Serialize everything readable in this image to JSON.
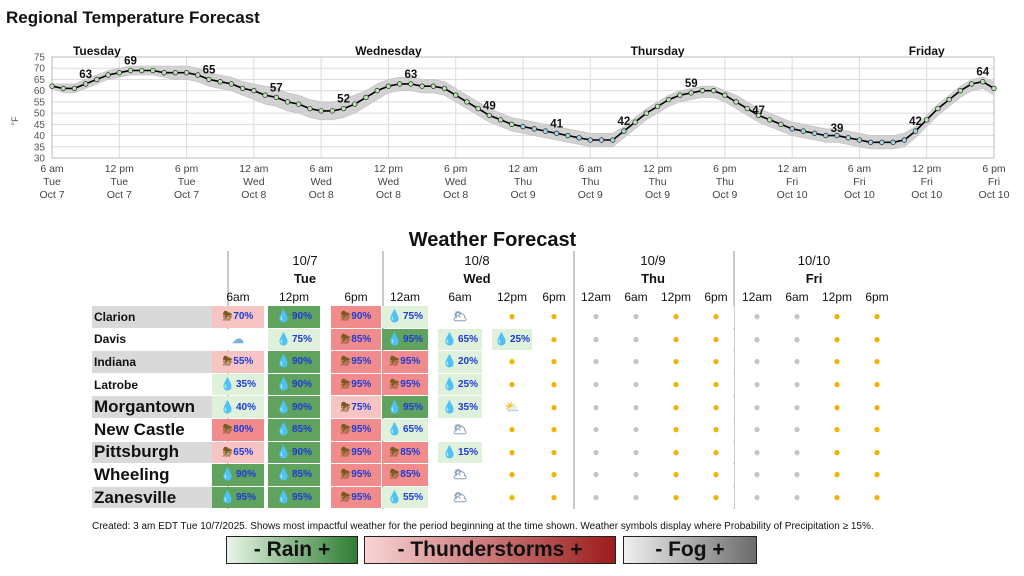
{
  "chart_data": {
    "type": "line",
    "title": "Regional Temperature Forecast",
    "ylabel": "°F",
    "ylim": [
      30,
      75
    ],
    "y_ticks": [
      30,
      35,
      40,
      45,
      50,
      55,
      60,
      65,
      70,
      75
    ],
    "grid": true,
    "day_labels": [
      {
        "label": "Tuesday",
        "h": 4
      },
      {
        "label": "Wednesday",
        "h": 30
      },
      {
        "label": "Thursday",
        "h": 54
      },
      {
        "label": "Friday",
        "h": 78
      }
    ],
    "x_ticks": [
      {
        "h": 0,
        "l1": "6 am",
        "l2": "Tue",
        "l3": "Oct 7"
      },
      {
        "h": 6,
        "l1": "12 pm",
        "l2": "Tue",
        "l3": "Oct 7"
      },
      {
        "h": 12,
        "l1": "6 pm",
        "l2": "Tue",
        "l3": "Oct 7"
      },
      {
        "h": 18,
        "l1": "12 am",
        "l2": "Wed",
        "l3": "Oct 8"
      },
      {
        "h": 24,
        "l1": "6 am",
        "l2": "Wed",
        "l3": "Oct 8"
      },
      {
        "h": 30,
        "l1": "12 pm",
        "l2": "Wed",
        "l3": "Oct 8"
      },
      {
        "h": 36,
        "l1": "6 pm",
        "l2": "Wed",
        "l3": "Oct 8"
      },
      {
        "h": 42,
        "l1": "12 am",
        "l2": "Thu",
        "l3": "Oct 9"
      },
      {
        "h": 48,
        "l1": "6 am",
        "l2": "Thu",
        "l3": "Oct 9"
      },
      {
        "h": 54,
        "l1": "12 pm",
        "l2": "Thu",
        "l3": "Oct 9"
      },
      {
        "h": 60,
        "l1": "6 pm",
        "l2": "Thu",
        "l3": "Oct 9"
      },
      {
        "h": 66,
        "l1": "12 am",
        "l2": "Fri",
        "l3": "Oct 10"
      },
      {
        "h": 72,
        "l1": "6 am",
        "l2": "Fri",
        "l3": "Oct 10"
      },
      {
        "h": 78,
        "l1": "12 pm",
        "l2": "Fri",
        "l3": "Oct 10"
      },
      {
        "h": 84,
        "l1": "6 pm",
        "l2": "Fri",
        "l3": "Oct 10"
      }
    ],
    "series": [
      {
        "h": [
          0,
          1,
          2,
          3,
          4,
          5,
          6,
          7,
          8,
          9,
          10,
          11,
          12,
          13,
          14,
          15,
          16,
          17,
          18,
          19,
          20,
          21,
          22,
          23,
          24,
          25,
          26,
          27,
          28,
          29,
          30,
          31,
          32,
          33,
          34,
          35,
          36,
          37,
          38,
          39,
          40,
          41,
          42,
          43,
          44,
          45,
          46,
          47,
          48,
          49,
          50,
          51,
          52,
          53,
          54,
          55,
          56,
          57,
          58,
          59,
          60,
          61,
          62,
          63,
          64,
          65,
          66,
          67,
          68,
          69,
          70,
          71,
          72,
          73,
          74,
          75,
          76,
          77,
          78,
          79,
          80,
          81,
          82,
          83,
          84
        ],
        "values": [
          62,
          61,
          61,
          63,
          65,
          67,
          68,
          69,
          69,
          69,
          68,
          68,
          68,
          67,
          65,
          64,
          63,
          61,
          60,
          58,
          57,
          55,
          54,
          52,
          51,
          51,
          52,
          54,
          57,
          60,
          62,
          63,
          63,
          62,
          62,
          61,
          58,
          55,
          52,
          49,
          47,
          45,
          44,
          43,
          42,
          41,
          40,
          39,
          38,
          38,
          38,
          42,
          46,
          50,
          53,
          56,
          58,
          59,
          60,
          60,
          58,
          55,
          52,
          49,
          47,
          45,
          43,
          42,
          41,
          40,
          40,
          39,
          38,
          37,
          37,
          37,
          38,
          42,
          47,
          52,
          56,
          60,
          63,
          64,
          61
        ],
        "upper": [
          63,
          63,
          63,
          65,
          67,
          69,
          70,
          71,
          71,
          71,
          71,
          71,
          71,
          70,
          68,
          67,
          66,
          64,
          63,
          62,
          61,
          59,
          58,
          56,
          55,
          55,
          56,
          58,
          60,
          63,
          65,
          66,
          66,
          65,
          65,
          64,
          61,
          58,
          55,
          52,
          50,
          48,
          47,
          46,
          45,
          44,
          43,
          42,
          41,
          41,
          41,
          44,
          48,
          52,
          55,
          58,
          60,
          61,
          62,
          62,
          60,
          58,
          55,
          52,
          50,
          48,
          46,
          45,
          44,
          43,
          43,
          42,
          41,
          40,
          40,
          40,
          41,
          44,
          49,
          54,
          58,
          62,
          65,
          66,
          64
        ],
        "lower": [
          61,
          59,
          59,
          61,
          63,
          65,
          66,
          67,
          67,
          67,
          66,
          65,
          65,
          64,
          62,
          61,
          60,
          58,
          56,
          54,
          53,
          51,
          50,
          48,
          47,
          47,
          48,
          50,
          53,
          56,
          59,
          60,
          60,
          59,
          59,
          58,
          55,
          52,
          49,
          46,
          44,
          42,
          41,
          40,
          39,
          38,
          37,
          36,
          35,
          35,
          35,
          39,
          43,
          47,
          50,
          53,
          55,
          56,
          57,
          57,
          55,
          52,
          49,
          46,
          44,
          42,
          40,
          39,
          38,
          37,
          37,
          36,
          35,
          34,
          34,
          34,
          35,
          39,
          44,
          49,
          53,
          57,
          60,
          61,
          58
        ]
      }
    ],
    "labeled_points": [
      {
        "h": 3,
        "v": 63
      },
      {
        "h": 7,
        "v": 69
      },
      {
        "h": 14,
        "v": 65
      },
      {
        "h": 20,
        "v": 57
      },
      {
        "h": 26,
        "v": 52
      },
      {
        "h": 32,
        "v": 63
      },
      {
        "h": 39,
        "v": 49
      },
      {
        "h": 45,
        "v": 41
      },
      {
        "h": 51,
        "v": 42
      },
      {
        "h": 57,
        "v": 59
      },
      {
        "h": 63,
        "v": 47
      },
      {
        "h": 70,
        "v": 39
      },
      {
        "h": 77,
        "v": 42
      },
      {
        "h": 83,
        "v": 64
      }
    ],
    "colors": {
      "line": "#000000",
      "band": "#d2d2d2",
      "marker": "#b8e6b0",
      "marker_low": "#9fd9e6"
    }
  },
  "forecast": {
    "title": "Weather Forecast",
    "days": [
      {
        "date": "10/7",
        "name": "Tue",
        "times": [
          "6am",
          "12pm",
          "6pm"
        ]
      },
      {
        "date": "10/8",
        "name": "Wed",
        "times": [
          "12am",
          "6am",
          "12pm",
          "6pm"
        ]
      },
      {
        "date": "10/9",
        "name": "Thu",
        "times": [
          "12am",
          "6am",
          "12pm",
          "6pm"
        ]
      },
      {
        "date": "10/10",
        "name": "Fri",
        "times": [
          "12am",
          "6am",
          "12pm",
          "6pm"
        ]
      }
    ],
    "rows": [
      {
        "name": "Clarion",
        "cells": [
          [
            "T",
            "70%"
          ],
          [
            "R",
            "90%"
          ],
          [
            "T",
            "90%"
          ],
          [
            "R",
            "75%"
          ],
          [
            "F",
            ""
          ],
          [
            "S",
            ""
          ],
          [
            "S",
            ""
          ],
          [
            "M",
            ""
          ],
          [
            "M",
            ""
          ],
          [
            "S",
            ""
          ],
          [
            "S",
            ""
          ],
          [
            "M",
            ""
          ],
          [
            "M",
            ""
          ],
          [
            "S",
            ""
          ],
          [
            "S",
            ""
          ]
        ]
      },
      {
        "name": "Davis",
        "cells": [
          [
            "C",
            ""
          ],
          [
            "R",
            "75%"
          ],
          [
            "T",
            "85%"
          ],
          [
            "R",
            "95%"
          ],
          [
            "R",
            "65%"
          ],
          [
            "R",
            "25%"
          ],
          [
            "S",
            ""
          ],
          [
            "M",
            ""
          ],
          [
            "M",
            ""
          ],
          [
            "S",
            ""
          ],
          [
            "S",
            ""
          ],
          [
            "M",
            ""
          ],
          [
            "M",
            ""
          ],
          [
            "S",
            ""
          ],
          [
            "S",
            ""
          ]
        ]
      },
      {
        "name": "Indiana",
        "cells": [
          [
            "T",
            "55%"
          ],
          [
            "R",
            "90%"
          ],
          [
            "T",
            "95%"
          ],
          [
            "T",
            "95%"
          ],
          [
            "R",
            "20%"
          ],
          [
            "S",
            ""
          ],
          [
            "S",
            ""
          ],
          [
            "M",
            ""
          ],
          [
            "M",
            ""
          ],
          [
            "S",
            ""
          ],
          [
            "S",
            ""
          ],
          [
            "M",
            ""
          ],
          [
            "M",
            ""
          ],
          [
            "S",
            ""
          ],
          [
            "S",
            ""
          ]
        ]
      },
      {
        "name": "Latrobe",
        "cells": [
          [
            "R",
            "35%"
          ],
          [
            "R",
            "90%"
          ],
          [
            "T",
            "95%"
          ],
          [
            "T",
            "95%"
          ],
          [
            "R",
            "25%"
          ],
          [
            "S",
            ""
          ],
          [
            "S",
            ""
          ],
          [
            "M",
            ""
          ],
          [
            "M",
            ""
          ],
          [
            "S",
            ""
          ],
          [
            "S",
            ""
          ],
          [
            "M",
            ""
          ],
          [
            "M",
            ""
          ],
          [
            "S",
            ""
          ],
          [
            "S",
            ""
          ]
        ]
      },
      {
        "name": "Morgantown",
        "cells": [
          [
            "R",
            "40%"
          ],
          [
            "R",
            "90%"
          ],
          [
            "T",
            "75%"
          ],
          [
            "R",
            "95%"
          ],
          [
            "R",
            "35%"
          ],
          [
            "P",
            ""
          ],
          [
            "S",
            ""
          ],
          [
            "M",
            ""
          ],
          [
            "M",
            ""
          ],
          [
            "S",
            ""
          ],
          [
            "S",
            ""
          ],
          [
            "M",
            ""
          ],
          [
            "M",
            ""
          ],
          [
            "S",
            ""
          ],
          [
            "S",
            ""
          ]
        ]
      },
      {
        "name": "New Castle",
        "cells": [
          [
            "T",
            "80%"
          ],
          [
            "R",
            "85%"
          ],
          [
            "T",
            "95%"
          ],
          [
            "R",
            "65%"
          ],
          [
            "F",
            ""
          ],
          [
            "S",
            ""
          ],
          [
            "S",
            ""
          ],
          [
            "M",
            ""
          ],
          [
            "M",
            ""
          ],
          [
            "S",
            ""
          ],
          [
            "S",
            ""
          ],
          [
            "M",
            ""
          ],
          [
            "M",
            ""
          ],
          [
            "S",
            ""
          ],
          [
            "S",
            ""
          ]
        ]
      },
      {
        "name": "Pittsburgh",
        "cells": [
          [
            "T",
            "65%"
          ],
          [
            "R",
            "90%"
          ],
          [
            "T",
            "95%"
          ],
          [
            "T",
            "85%"
          ],
          [
            "R",
            "15%"
          ],
          [
            "S",
            ""
          ],
          [
            "S",
            ""
          ],
          [
            "M",
            ""
          ],
          [
            "M",
            ""
          ],
          [
            "S",
            ""
          ],
          [
            "S",
            ""
          ],
          [
            "M",
            ""
          ],
          [
            "M",
            ""
          ],
          [
            "S",
            ""
          ],
          [
            "S",
            ""
          ]
        ]
      },
      {
        "name": "Wheeling",
        "cells": [
          [
            "R",
            "90%"
          ],
          [
            "R",
            "85%"
          ],
          [
            "T",
            "95%"
          ],
          [
            "T",
            "85%"
          ],
          [
            "F",
            ""
          ],
          [
            "S",
            ""
          ],
          [
            "S",
            ""
          ],
          [
            "M",
            ""
          ],
          [
            "M",
            ""
          ],
          [
            "S",
            ""
          ],
          [
            "S",
            ""
          ],
          [
            "M",
            ""
          ],
          [
            "M",
            ""
          ],
          [
            "S",
            ""
          ],
          [
            "S",
            ""
          ]
        ]
      },
      {
        "name": "Zanesville",
        "cells": [
          [
            "R",
            "95%"
          ],
          [
            "R",
            "95%"
          ],
          [
            "T",
            "95%"
          ],
          [
            "R",
            "55%"
          ],
          [
            "F",
            ""
          ],
          [
            "S",
            ""
          ],
          [
            "S",
            ""
          ],
          [
            "M",
            ""
          ],
          [
            "M",
            ""
          ],
          [
            "S",
            ""
          ],
          [
            "S",
            ""
          ],
          [
            "M",
            ""
          ],
          [
            "M",
            ""
          ],
          [
            "S",
            ""
          ],
          [
            "S",
            ""
          ]
        ]
      }
    ],
    "footnote": "Created: 3 am EDT Tue 10/7/2025. Shows most impactful weather for the period beginning at the time shown. Weather symbols display where Probability of Precipitation ≥ 15%.",
    "legend": [
      {
        "label": "- Rain +",
        "from": "#e8f5e6",
        "to": "#2e7d32"
      },
      {
        "label": "- Thunderstorms +",
        "from": "#f8d4d4",
        "to": "#9b1b1b"
      },
      {
        "label": "- Fog +",
        "from": "#f0f0f0",
        "to": "#6b6b6b"
      }
    ],
    "colors": {
      "T": [
        "#f7c4c4",
        "#f28b8b"
      ],
      "R": [
        "#dff0db",
        "#5fa35f"
      ],
      "C": "#ffffff",
      "F": "#ffffff",
      "P": "#ffffff",
      "S": "#ffffff",
      "M": "#ffffff"
    }
  }
}
